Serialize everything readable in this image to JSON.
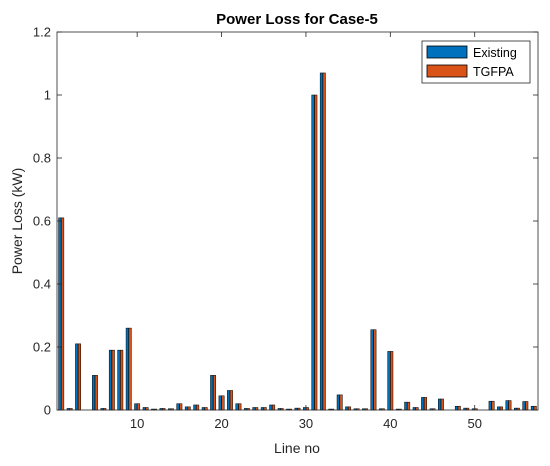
{
  "chart_data": {
    "type": "bar",
    "title": "Power Loss for Case-5",
    "xlabel": "Line no",
    "ylabel": "Power Loss (kW)",
    "xlim": [
      0.5,
      57.5
    ],
    "ylim": [
      0,
      1.2
    ],
    "xticks": [
      10,
      20,
      30,
      40,
      50
    ],
    "yticks": [
      0,
      0.2,
      0.4,
      0.6,
      0.8,
      1,
      1.2
    ],
    "ytick_labels": [
      "0",
      "0.2",
      "0.4",
      "0.6",
      "0.8",
      "1",
      "1.2"
    ],
    "legend_position": "top-right",
    "grid": false,
    "categories": [
      1,
      2,
      3,
      4,
      5,
      6,
      7,
      8,
      9,
      10,
      11,
      12,
      13,
      14,
      15,
      16,
      17,
      18,
      19,
      20,
      21,
      22,
      23,
      24,
      25,
      26,
      27,
      28,
      29,
      30,
      31,
      32,
      33,
      34,
      35,
      36,
      37,
      38,
      39,
      40,
      41,
      42,
      43,
      44,
      45,
      46,
      47,
      48,
      49,
      50,
      51,
      52,
      53,
      54,
      55,
      56,
      57
    ],
    "series": [
      {
        "name": "Existing",
        "color": "#0072BD",
        "values": [
          0.61,
          0.005,
          0.21,
          0.0,
          0.11,
          0.005,
          0.19,
          0.19,
          0.26,
          0.02,
          0.008,
          0.003,
          0.005,
          0.004,
          0.02,
          0.01,
          0.016,
          0.008,
          0.11,
          0.045,
          0.062,
          0.02,
          0.005,
          0.008,
          0.008,
          0.016,
          0.005,
          0.003,
          0.006,
          0.008,
          1.0,
          1.07,
          0.003,
          0.048,
          0.01,
          0.004,
          0.004,
          0.255,
          0.004,
          0.186,
          0.003,
          0.025,
          0.008,
          0.04,
          0.004,
          0.035,
          0.0,
          0.012,
          0.006,
          0.004,
          0.0,
          0.028,
          0.01,
          0.03,
          0.006,
          0.027,
          0.012
        ]
      },
      {
        "name": "TGFPA",
        "color": "#D95319",
        "values": [
          0.61,
          0.005,
          0.21,
          0.0,
          0.11,
          0.005,
          0.19,
          0.19,
          0.26,
          0.02,
          0.008,
          0.003,
          0.005,
          0.004,
          0.02,
          0.01,
          0.016,
          0.008,
          0.11,
          0.045,
          0.062,
          0.02,
          0.005,
          0.008,
          0.008,
          0.016,
          0.005,
          0.003,
          0.006,
          0.008,
          1.0,
          1.07,
          0.003,
          0.048,
          0.01,
          0.004,
          0.004,
          0.255,
          0.004,
          0.186,
          0.003,
          0.025,
          0.008,
          0.04,
          0.004,
          0.035,
          0.0,
          0.012,
          0.006,
          0.004,
          0.0,
          0.028,
          0.01,
          0.03,
          0.006,
          0.027,
          0.012
        ]
      }
    ]
  }
}
